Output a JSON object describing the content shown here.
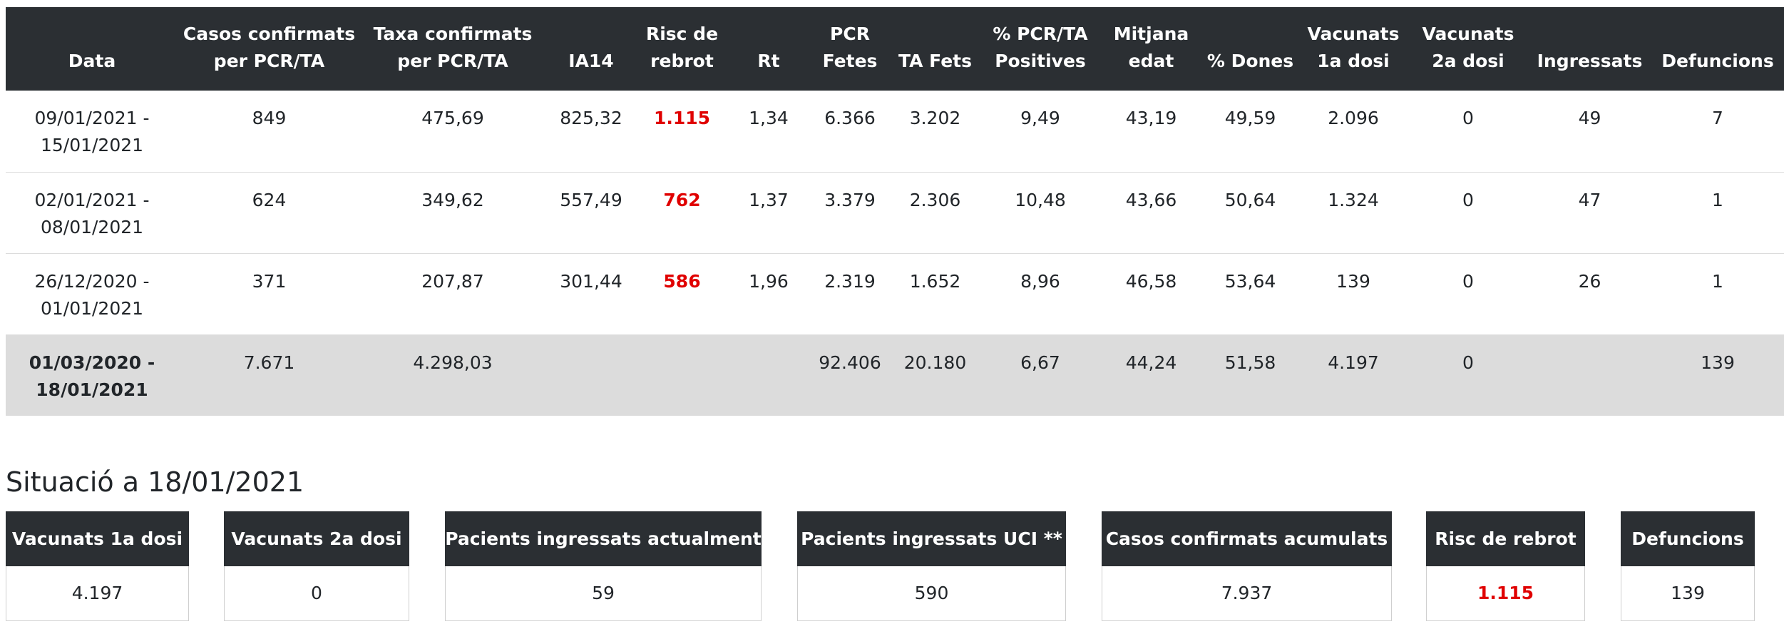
{
  "table": {
    "headers": [
      "Data",
      "Casos confirmats per PCR/TA",
      "Taxa confirmats per PCR/TA",
      "IA14",
      "Risc de rebrot",
      "Rt",
      "PCR Fetes",
      "TA Fets",
      "% PCR/TA Positives",
      "Mitjana edat",
      "% Dones",
      "Vacunats 1a dosi",
      "Vacunats 2a dosi",
      "Ingressats",
      "Defuncions"
    ],
    "rows": [
      [
        "09/01/2021 - 15/01/2021",
        "849",
        "475,69",
        "825,32",
        "1.115",
        "1,34",
        "6.366",
        "3.202",
        "9,49",
        "43,19",
        "49,59",
        "2.096",
        "0",
        "49",
        "7"
      ],
      [
        "02/01/2021 - 08/01/2021",
        "624",
        "349,62",
        "557,49",
        "762",
        "1,37",
        "3.379",
        "2.306",
        "10,48",
        "43,66",
        "50,64",
        "1.324",
        "0",
        "47",
        "1"
      ],
      [
        "26/12/2020 - 01/01/2021",
        "371",
        "207,87",
        "301,44",
        "586",
        "1,96",
        "2.319",
        "1.652",
        "8,96",
        "46,58",
        "53,64",
        "139",
        "0",
        "26",
        "1"
      ],
      [
        "01/03/2020 - 18/01/2021",
        "7.671",
        "4.298,03",
        null,
        null,
        null,
        "92.406",
        "20.180",
        "6,67",
        "44,24",
        "51,58",
        "4.197",
        "0",
        null,
        "139"
      ]
    ]
  },
  "situation": {
    "title": "Situació a 18/01/2021",
    "cards": [
      {
        "label": "Vacunats 1a dosi",
        "value": "4.197"
      },
      {
        "label": "Vacunats 2a dosi",
        "value": "0"
      },
      {
        "label": "Pacients ingressats actualment",
        "value": "59"
      },
      {
        "label": "Pacients ingressats UCI **",
        "value": "590"
      },
      {
        "label": "Casos confirmats acumulats",
        "value": "7.937"
      },
      {
        "label": "Risc de rebrot",
        "value": "1.115"
      },
      {
        "label": "Defuncions",
        "value": "139"
      }
    ]
  }
}
